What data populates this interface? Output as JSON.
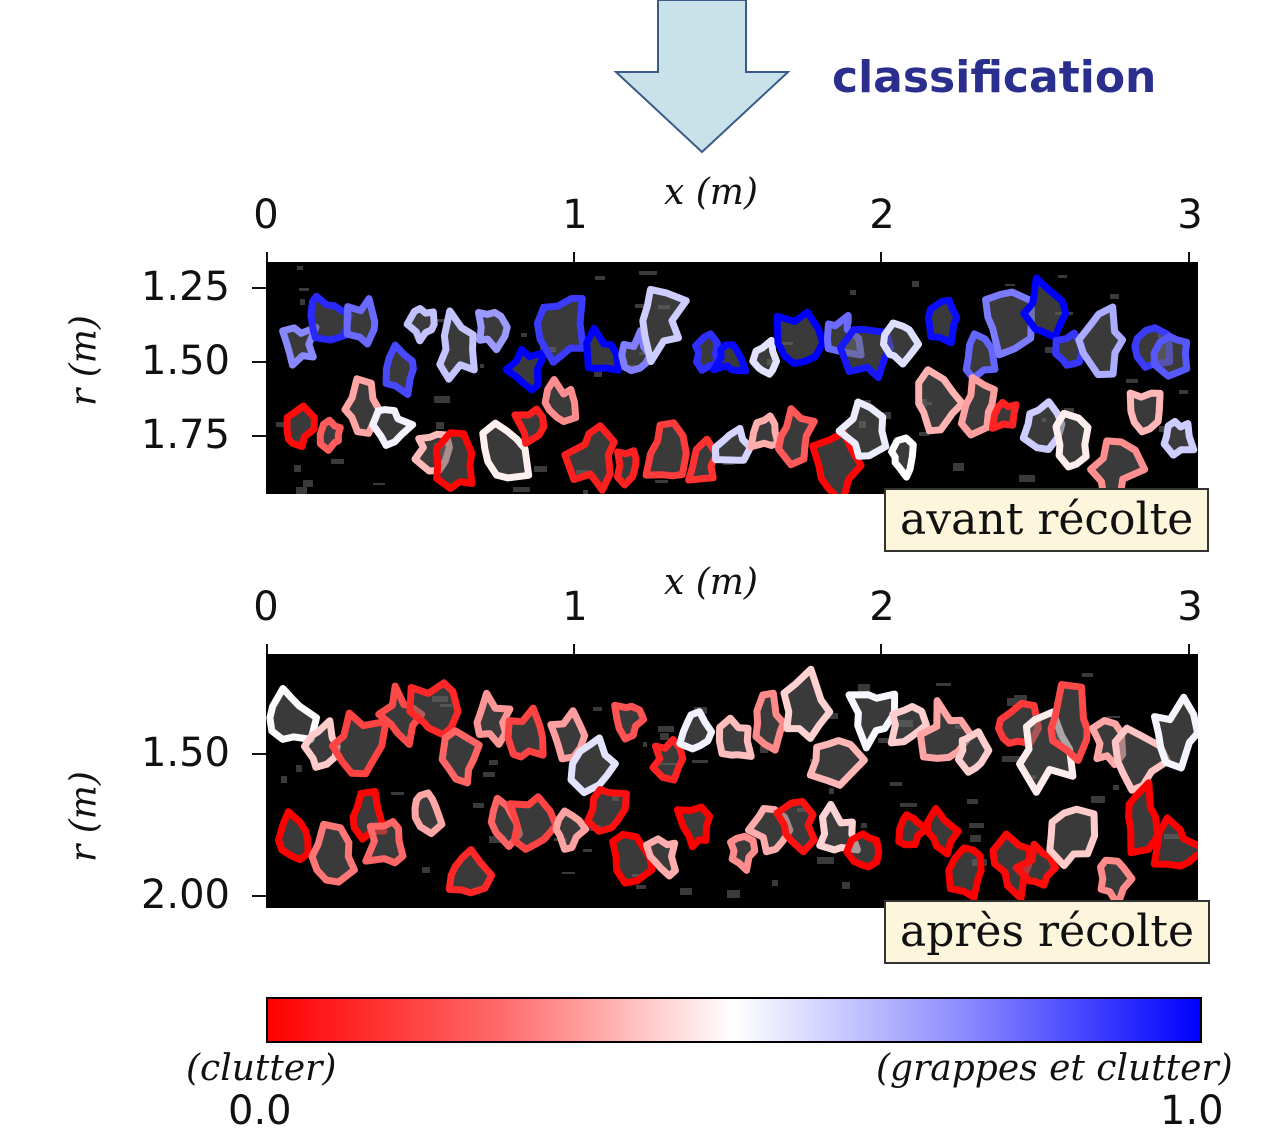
{
  "header": {
    "step_label": "classification"
  },
  "colors": {
    "clutter": "#ff0000",
    "grapes": "#0000ff",
    "mid": "#ffffff",
    "label_blue": "#2a2f8e",
    "arrow_fill": "#c9e2ea"
  },
  "chart_data": [
    {
      "type": "heatmap",
      "xlabel": "x (m)",
      "ylabel": "r (m)",
      "xticks": [
        "0",
        "1",
        "2",
        "3"
      ],
      "yticks": [
        "1.25",
        "1.50",
        "1.75"
      ],
      "xlim": [
        0,
        3
      ],
      "ylim": [
        1.95,
        1.17
      ],
      "annotation": "avant récolte",
      "note": "contours colored by classification score, mostly blue in upper band, mixed red/white in lower band"
    },
    {
      "type": "heatmap",
      "xlabel": "x (m)",
      "ylabel": "r (m)",
      "xticks": [
        "0",
        "1",
        "2",
        "3"
      ],
      "yticks": [
        "1.50",
        "2.00"
      ],
      "xlim": [
        0,
        3
      ],
      "ylim": [
        2.03,
        1.15
      ],
      "annotation": "après récolte",
      "note": "contours mostly red with a few blue and white clusters"
    }
  ],
  "colorbar": {
    "left_label": "(clutter)",
    "right_label": "(grappes et clutter)",
    "min_tick": "0.0",
    "max_tick": "1.0",
    "range": [
      0.0,
      1.0
    ]
  }
}
